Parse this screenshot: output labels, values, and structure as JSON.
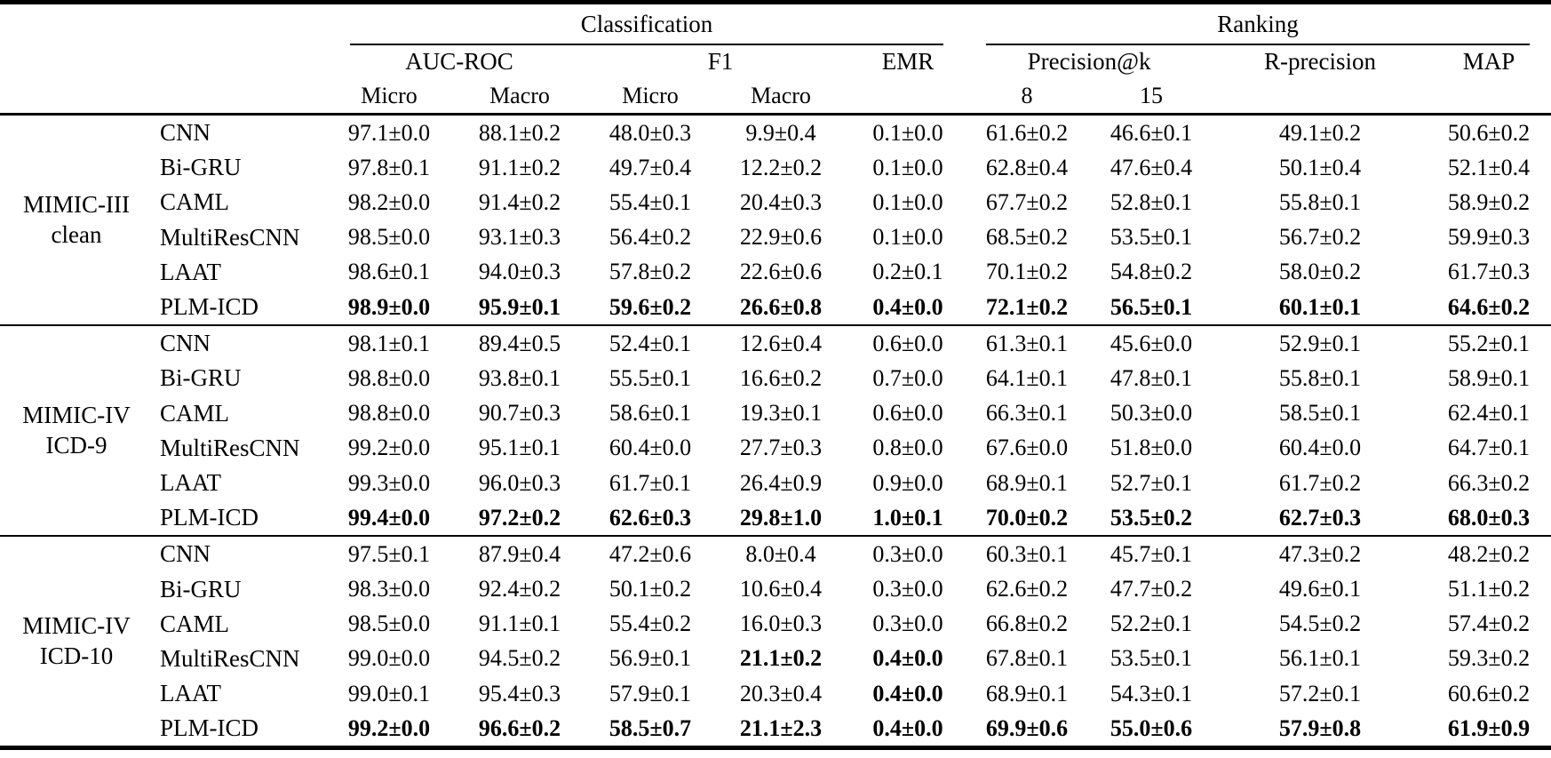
{
  "page": {
    "background_color": "#ffffff",
    "text_color": "#000000",
    "rule_color": "#000000"
  },
  "table": {
    "header": {
      "groups": [
        {
          "label": "Classification",
          "cols": 5
        },
        {
          "label": "Ranking",
          "cols": 4
        }
      ],
      "metrics": [
        {
          "label": "AUC-ROC",
          "subs": [
            "Micro",
            "Macro"
          ]
        },
        {
          "label": "F1",
          "subs": [
            "Micro",
            "Macro"
          ]
        },
        {
          "label": "EMR",
          "subs": []
        },
        {
          "label": "Precision@k",
          "subs": [
            "8",
            "15"
          ]
        },
        {
          "label": "R-precision",
          "subs": []
        },
        {
          "label": "MAP",
          "subs": []
        }
      ]
    },
    "body": [
      {
        "dataset": [
          "MIMIC-III",
          "clean"
        ],
        "rows": [
          {
            "model": "CNN",
            "values": [
              "97.1±0.0",
              "88.1±0.2",
              "48.0±0.3",
              "9.9±0.4",
              "0.1±0.0",
              "61.6±0.2",
              "46.6±0.1",
              "49.1±0.2",
              "50.6±0.2"
            ],
            "bold": [
              0,
              0,
              0,
              0,
              0,
              0,
              0,
              0,
              0
            ]
          },
          {
            "model": "Bi-GRU",
            "values": [
              "97.8±0.1",
              "91.1±0.2",
              "49.7±0.4",
              "12.2±0.2",
              "0.1±0.0",
              "62.8±0.4",
              "47.6±0.4",
              "50.1±0.4",
              "52.1±0.4"
            ],
            "bold": [
              0,
              0,
              0,
              0,
              0,
              0,
              0,
              0,
              0
            ]
          },
          {
            "model": "CAML",
            "values": [
              "98.2±0.0",
              "91.4±0.2",
              "55.4±0.1",
              "20.4±0.3",
              "0.1±0.0",
              "67.7±0.2",
              "52.8±0.1",
              "55.8±0.1",
              "58.9±0.2"
            ],
            "bold": [
              0,
              0,
              0,
              0,
              0,
              0,
              0,
              0,
              0
            ]
          },
          {
            "model": "MultiResCNN",
            "values": [
              "98.5±0.0",
              "93.1±0.3",
              "56.4±0.2",
              "22.9±0.6",
              "0.1±0.0",
              "68.5±0.2",
              "53.5±0.1",
              "56.7±0.2",
              "59.9±0.3"
            ],
            "bold": [
              0,
              0,
              0,
              0,
              0,
              0,
              0,
              0,
              0
            ]
          },
          {
            "model": "LAAT",
            "values": [
              "98.6±0.1",
              "94.0±0.3",
              "57.8±0.2",
              "22.6±0.6",
              "0.2±0.1",
              "70.1±0.2",
              "54.8±0.2",
              "58.0±0.2",
              "61.7±0.3"
            ],
            "bold": [
              0,
              0,
              0,
              0,
              0,
              0,
              0,
              0,
              0
            ]
          },
          {
            "model": "PLM-ICD",
            "values": [
              "98.9±0.0",
              "95.9±0.1",
              "59.6±0.2",
              "26.6±0.8",
              "0.4±0.0",
              "72.1±0.2",
              "56.5±0.1",
              "60.1±0.1",
              "64.6±0.2"
            ],
            "bold": [
              1,
              1,
              1,
              1,
              1,
              1,
              1,
              1,
              1
            ]
          }
        ]
      },
      {
        "dataset": [
          "MIMIC-IV",
          "ICD-9"
        ],
        "rows": [
          {
            "model": "CNN",
            "values": [
              "98.1±0.1",
              "89.4±0.5",
              "52.4±0.1",
              "12.6±0.4",
              "0.6±0.0",
              "61.3±0.1",
              "45.6±0.0",
              "52.9±0.1",
              "55.2±0.1"
            ],
            "bold": [
              0,
              0,
              0,
              0,
              0,
              0,
              0,
              0,
              0
            ]
          },
          {
            "model": "Bi-GRU",
            "values": [
              "98.8±0.0",
              "93.8±0.1",
              "55.5±0.1",
              "16.6±0.2",
              "0.7±0.0",
              "64.1±0.1",
              "47.8±0.1",
              "55.8±0.1",
              "58.9±0.1"
            ],
            "bold": [
              0,
              0,
              0,
              0,
              0,
              0,
              0,
              0,
              0
            ]
          },
          {
            "model": "CAML",
            "values": [
              "98.8±0.0",
              "90.7±0.3",
              "58.6±0.1",
              "19.3±0.1",
              "0.6±0.0",
              "66.3±0.1",
              "50.3±0.0",
              "58.5±0.1",
              "62.4±0.1"
            ],
            "bold": [
              0,
              0,
              0,
              0,
              0,
              0,
              0,
              0,
              0
            ]
          },
          {
            "model": "MultiResCNN",
            "values": [
              "99.2±0.0",
              "95.1±0.1",
              "60.4±0.0",
              "27.7±0.3",
              "0.8±0.0",
              "67.6±0.0",
              "51.8±0.0",
              "60.4±0.0",
              "64.7±0.1"
            ],
            "bold": [
              0,
              0,
              0,
              0,
              0,
              0,
              0,
              0,
              0
            ]
          },
          {
            "model": "LAAT",
            "values": [
              "99.3±0.0",
              "96.0±0.3",
              "61.7±0.1",
              "26.4±0.9",
              "0.9±0.0",
              "68.9±0.1",
              "52.7±0.1",
              "61.7±0.2",
              "66.3±0.2"
            ],
            "bold": [
              0,
              0,
              0,
              0,
              0,
              0,
              0,
              0,
              0
            ]
          },
          {
            "model": "PLM-ICD",
            "values": [
              "99.4±0.0",
              "97.2±0.2",
              "62.6±0.3",
              "29.8±1.0",
              "1.0±0.1",
              "70.0±0.2",
              "53.5±0.2",
              "62.7±0.3",
              "68.0±0.3"
            ],
            "bold": [
              1,
              1,
              1,
              1,
              1,
              1,
              1,
              1,
              1
            ]
          }
        ]
      },
      {
        "dataset": [
          "MIMIC-IV",
          "ICD-10"
        ],
        "rows": [
          {
            "model": "CNN",
            "values": [
              "97.5±0.1",
              "87.9±0.4",
              "47.2±0.6",
              "8.0±0.4",
              "0.3±0.0",
              "60.3±0.1",
              "45.7±0.1",
              "47.3±0.2",
              "48.2±0.2"
            ],
            "bold": [
              0,
              0,
              0,
              0,
              0,
              0,
              0,
              0,
              0
            ]
          },
          {
            "model": "Bi-GRU",
            "values": [
              "98.3±0.0",
              "92.4±0.2",
              "50.1±0.2",
              "10.6±0.4",
              "0.3±0.0",
              "62.6±0.2",
              "47.7±0.2",
              "49.6±0.1",
              "51.1±0.2"
            ],
            "bold": [
              0,
              0,
              0,
              0,
              0,
              0,
              0,
              0,
              0
            ]
          },
          {
            "model": "CAML",
            "values": [
              "98.5±0.0",
              "91.1±0.1",
              "55.4±0.2",
              "16.0±0.3",
              "0.3±0.0",
              "66.8±0.2",
              "52.2±0.1",
              "54.5±0.2",
              "57.4±0.2"
            ],
            "bold": [
              0,
              0,
              0,
              0,
              0,
              0,
              0,
              0,
              0
            ]
          },
          {
            "model": "MultiResCNN",
            "values": [
              "99.0±0.0",
              "94.5±0.2",
              "56.9±0.1",
              "21.1±0.2",
              "0.4±0.0",
              "67.8±0.1",
              "53.5±0.1",
              "56.1±0.1",
              "59.3±0.2"
            ],
            "bold": [
              0,
              0,
              0,
              1,
              1,
              0,
              0,
              0,
              0
            ]
          },
          {
            "model": "LAAT",
            "values": [
              "99.0±0.1",
              "95.4±0.3",
              "57.9±0.1",
              "20.3±0.4",
              "0.4±0.0",
              "68.9±0.1",
              "54.3±0.1",
              "57.2±0.1",
              "60.6±0.2"
            ],
            "bold": [
              0,
              0,
              0,
              0,
              1,
              0,
              0,
              0,
              0
            ]
          },
          {
            "model": "PLM-ICD",
            "values": [
              "99.2±0.0",
              "96.6±0.2",
              "58.5±0.7",
              "21.1±2.3",
              "0.4±0.0",
              "69.9±0.6",
              "55.0±0.6",
              "57.9±0.8",
              "61.9±0.9"
            ],
            "bold": [
              1,
              1,
              1,
              1,
              1,
              1,
              1,
              1,
              1
            ]
          }
        ]
      }
    ]
  }
}
